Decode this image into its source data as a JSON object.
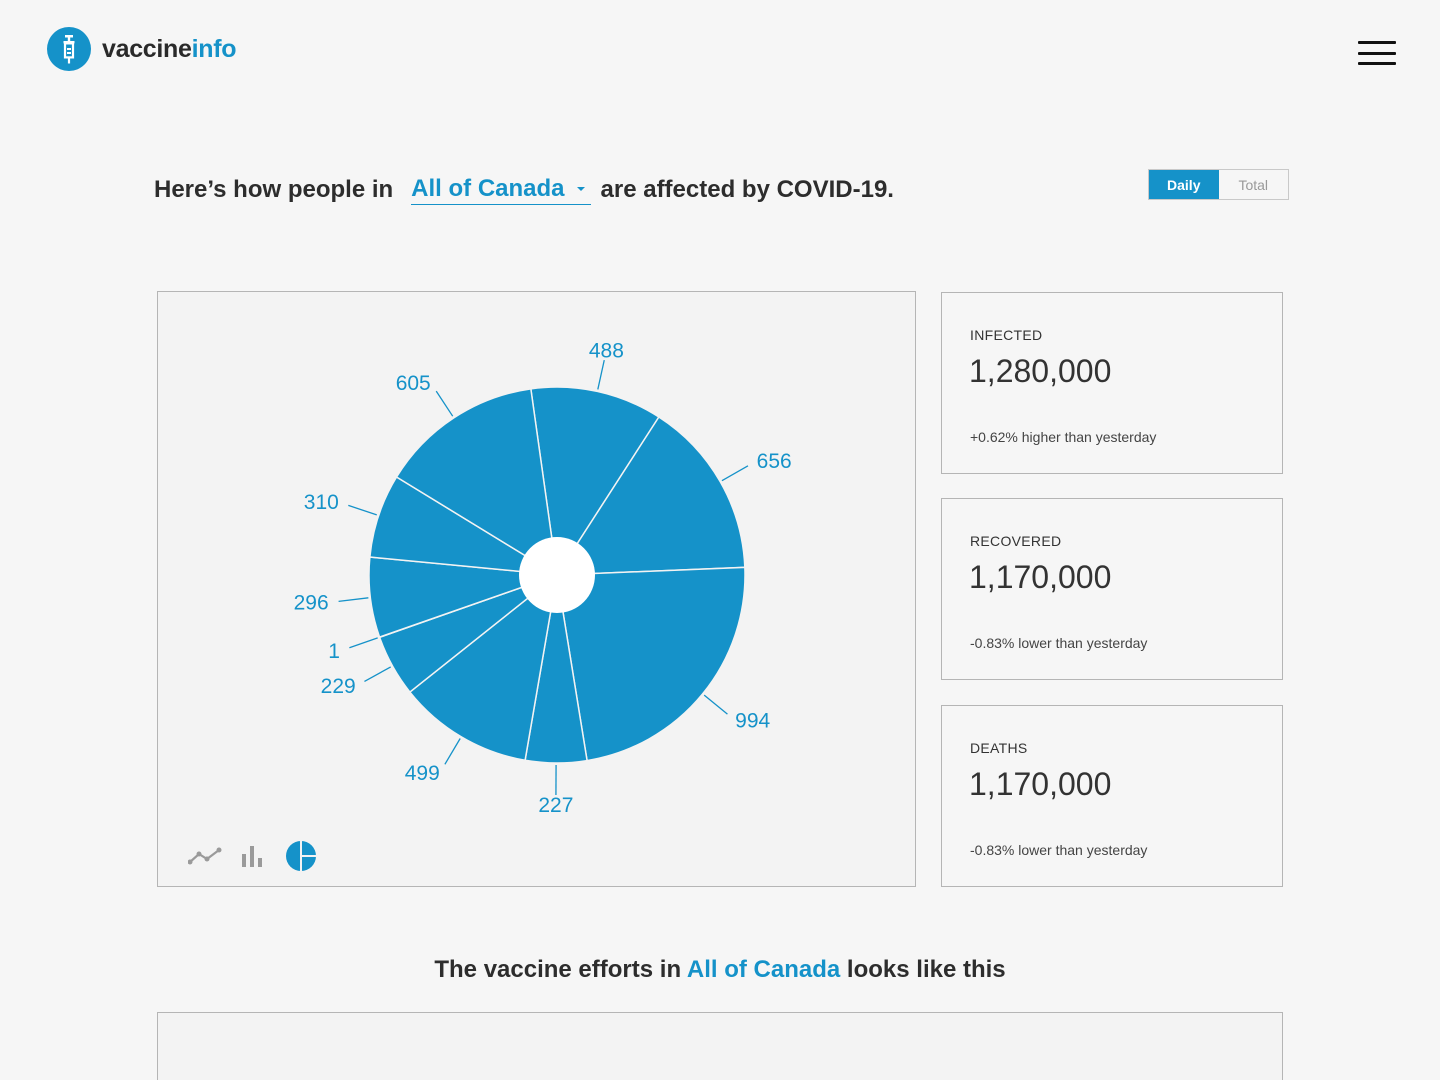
{
  "header": {
    "logo_part1": "vaccine",
    "logo_part2": "info",
    "logo_icon": "syringe-icon",
    "menu_icon": "hamburger-menu-icon"
  },
  "headline": {
    "prefix": "Here’s how people in",
    "region": "All of Canada",
    "suffix": "are affected by COVID-19."
  },
  "toggle": {
    "options": [
      "Daily",
      "Total"
    ],
    "selected": "Daily"
  },
  "chart_data": {
    "type": "pie",
    "values": [
      488,
      656,
      994,
      227,
      499,
      229,
      1,
      296,
      310,
      605
    ],
    "labels": [
      "488",
      "656",
      "994",
      "227",
      "499",
      "229",
      "1",
      "296",
      "310",
      "605"
    ],
    "color": "#1592c9",
    "donut_hole": true
  },
  "chart_tools": [
    {
      "name": "line-chart-icon",
      "active": false
    },
    {
      "name": "bar-chart-icon",
      "active": false
    },
    {
      "name": "pie-chart-icon",
      "active": true
    }
  ],
  "stats": [
    {
      "label": "INFECTED",
      "value": "1,280,000",
      "change": "+0.62% higher than yesterday"
    },
    {
      "label": "RECOVERED",
      "value": "1,170,000",
      "change": "-0.83% lower than yesterday"
    },
    {
      "label": "DEATHS",
      "value": "1,170,000",
      "change": "-0.83% lower than yesterday"
    }
  ],
  "vaccine_section": {
    "title_prefix": "The vaccine efforts in",
    "region": "All of Canada",
    "title_suffix": "looks like this"
  },
  "colors": {
    "accent": "#1592c9",
    "background": "#f6f6f6"
  }
}
